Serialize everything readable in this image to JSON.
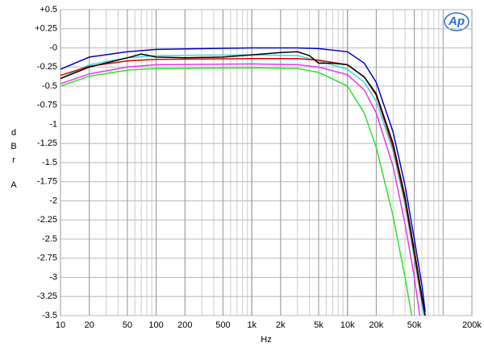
{
  "chart_data": {
    "type": "line",
    "logo": "Ap",
    "xlabel": "Hz",
    "ylabel": [
      "d",
      "B",
      "r",
      "A"
    ],
    "xscale": "log",
    "grid": true,
    "xlim": [
      10,
      200000
    ],
    "ylim": [
      -3.5,
      0.5
    ],
    "xticks": [
      10,
      20,
      50,
      100,
      200,
      500,
      {
        "value": 1000,
        "label": "1k"
      },
      {
        "value": 2000,
        "label": "2k"
      },
      {
        "value": 5000,
        "label": "5k"
      },
      {
        "value": 10000,
        "label": "10k"
      },
      {
        "value": 20000,
        "label": "20k"
      },
      {
        "value": 50000,
        "label": "50k"
      },
      {
        "value": 200000,
        "label": "200k"
      }
    ],
    "yticks": [
      {
        "value": 0.5,
        "label": "+0.5"
      },
      {
        "value": 0.25,
        "label": "+0.25"
      },
      {
        "value": 0,
        "label": "-0"
      },
      -0.25,
      -0.5,
      -0.75,
      -1,
      -1.25,
      -1.5,
      -1.75,
      -2,
      -2.25,
      -2.5,
      -2.75,
      -3,
      -3.25,
      -3.5
    ],
    "series": [
      {
        "color": "#2ee02e",
        "x": [
          10,
          20,
          50,
          100,
          1000,
          3000,
          5000,
          10000,
          15000,
          20000,
          30000,
          40000,
          47000
        ],
        "values": [
          -0.5,
          -0.37,
          -0.29,
          -0.27,
          -0.26,
          -0.27,
          -0.32,
          -0.5,
          -0.85,
          -1.3,
          -2.2,
          -3.0,
          -3.5
        ]
      },
      {
        "color": "#ee33ee",
        "x": [
          10,
          20,
          50,
          100,
          1000,
          3000,
          5000,
          10000,
          15000,
          20000,
          30000,
          40000,
          50000,
          57000
        ],
        "values": [
          -0.47,
          -0.34,
          -0.25,
          -0.22,
          -0.21,
          -0.22,
          -0.25,
          -0.35,
          -0.55,
          -0.85,
          -1.55,
          -2.3,
          -3.0,
          -3.5
        ]
      },
      {
        "color": "#33dddd",
        "x": [
          10,
          20,
          50,
          100,
          1000,
          3000,
          5000,
          10000,
          15000,
          20000,
          30000,
          40000,
          50000,
          60000,
          63000
        ],
        "values": [
          -0.4,
          -0.22,
          -0.13,
          -0.1,
          -0.09,
          -0.1,
          -0.17,
          -0.28,
          -0.45,
          -0.7,
          -1.35,
          -2.05,
          -2.75,
          -3.35,
          -3.5
        ]
      },
      {
        "color": "#e00000",
        "x": [
          10,
          20,
          50,
          100,
          1000,
          3000,
          5000,
          10000,
          15000,
          20000,
          30000,
          40000,
          50000,
          60000,
          65000
        ],
        "values": [
          -0.36,
          -0.24,
          -0.17,
          -0.15,
          -0.14,
          -0.14,
          -0.16,
          -0.22,
          -0.38,
          -0.62,
          -1.3,
          -2.0,
          -2.7,
          -3.3,
          -3.5
        ]
      },
      {
        "color": "#000000",
        "x": [
          10,
          20,
          50,
          70,
          100,
          200,
          500,
          1000,
          2000,
          3000,
          4000,
          5000,
          7000,
          10000,
          15000,
          20000,
          30000,
          40000,
          50000,
          60000,
          65000
        ],
        "values": [
          -0.4,
          -0.25,
          -0.13,
          -0.08,
          -0.12,
          -0.13,
          -0.12,
          -0.09,
          -0.06,
          -0.05,
          -0.1,
          -0.2,
          -0.2,
          -0.22,
          -0.38,
          -0.6,
          -1.25,
          -1.95,
          -2.65,
          -3.25,
          -3.5
        ]
      },
      {
        "color": "#0000cc",
        "x": [
          10,
          20,
          50,
          100,
          1000,
          3000,
          5000,
          10000,
          15000,
          20000,
          30000,
          40000,
          50000,
          60000,
          65000
        ],
        "values": [
          -0.28,
          -0.12,
          -0.05,
          -0.02,
          0,
          0,
          -0.01,
          -0.05,
          -0.2,
          -0.45,
          -1.1,
          -1.8,
          -2.5,
          -3.1,
          -3.45
        ]
      }
    ]
  }
}
